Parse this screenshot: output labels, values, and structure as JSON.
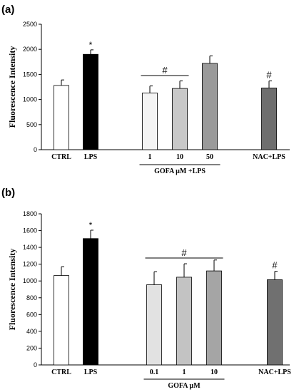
{
  "chart_data": [
    {
      "panel": "(a)",
      "type": "bar",
      "ylabel": "Fluorescence Intensity",
      "ylim": [
        0,
        2500
      ],
      "yticks": [
        0,
        500,
        1000,
        1500,
        2000,
        2500
      ],
      "categories": [
        "CTRL",
        "LPS",
        "1",
        "10",
        "50",
        "NAC+LPS"
      ],
      "values": [
        1280,
        1900,
        1130,
        1220,
        1720,
        1230
      ],
      "errors": [
        110,
        90,
        140,
        150,
        150,
        140
      ],
      "colors": [
        "#ffffff",
        "#000000",
        "#f4f4f4",
        "#c8c8c8",
        "#9a9a9a",
        "#6e6e6e"
      ],
      "annotations": [
        "",
        "*",
        "",
        "",
        "",
        "#"
      ],
      "bracket": {
        "label": "#",
        "from": 2,
        "to": 3
      },
      "group_label": {
        "text": "GOFA µM +LPS",
        "from": 2,
        "to": 4
      }
    },
    {
      "panel": "(b)",
      "type": "bar",
      "ylabel": "Fluorescence Intensity",
      "ylim": [
        0,
        1800
      ],
      "yticks": [
        0,
        200,
        400,
        600,
        800,
        1000,
        1200,
        1400,
        1600,
        1800
      ],
      "categories": [
        "CTRL",
        "LPS",
        "0.1",
        "1",
        "10",
        "NAC+LPS"
      ],
      "values": [
        1065,
        1505,
        955,
        1045,
        1120,
        1015
      ],
      "errors": [
        105,
        100,
        155,
        160,
        130,
        100
      ],
      "colors": [
        "#ffffff",
        "#000000",
        "#e2e2e2",
        "#c3c3c3",
        "#a5a5a5",
        "#707070"
      ],
      "annotations": [
        "",
        "*",
        "",
        "",
        "",
        "#"
      ],
      "bracket": {
        "label": "#",
        "from": 2,
        "to": 4
      },
      "group_label": {
        "text": "GOFA µM",
        "from": 2,
        "to": 4
      }
    }
  ]
}
